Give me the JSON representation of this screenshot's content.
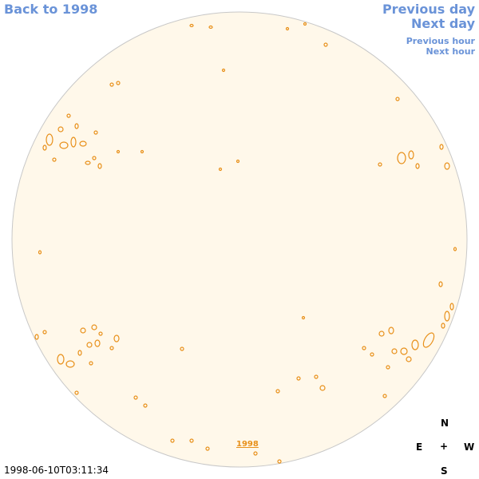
{
  "nav": {
    "back": "Back to 1998",
    "previous_day": "Previous day",
    "next_day": "Next day",
    "previous_hour": "Previous hour",
    "next_hour": "Next hour"
  },
  "year_link": "1998",
  "timestamp": "1998-06-10T03:11:34",
  "compass": {
    "n": "N",
    "e": "E",
    "w": "W",
    "s": "S",
    "center": "+"
  },
  "colors": {
    "disk_fill": "#fff8ea",
    "limb": "#c8c8c8",
    "contour": "#e8901a",
    "link": "#6a93d8"
  }
}
